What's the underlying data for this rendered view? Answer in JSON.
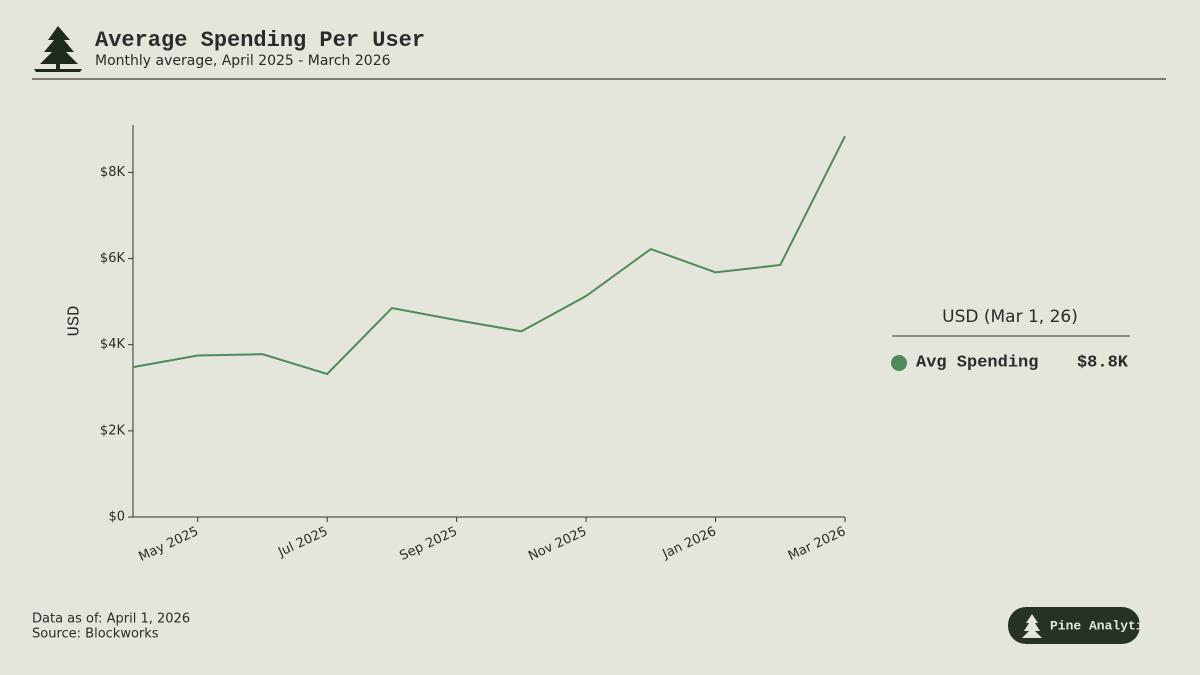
{
  "chart_data": {
    "type": "line",
    "title": "Average Spending Per User",
    "subtitle": "Monthly average, April 2025 - March 2026",
    "y_label": "USD",
    "x": [
      "2025-04",
      "2025-05",
      "2025-06",
      "2025-07",
      "2025-08",
      "2025-09",
      "2025-10",
      "2025-11",
      "2025-12",
      "2026-01",
      "2026-02",
      "2026-03"
    ],
    "series": [
      {
        "name": "Avg Spending",
        "color": "#4f8a5b",
        "values": [
          3480,
          3750,
          3780,
          3320,
          4850,
          4570,
          4310,
          5130,
          6220,
          5680,
          5850,
          8840
        ],
        "value_labels": [
          null,
          null,
          null,
          null,
          null,
          null,
          null,
          null,
          null,
          null,
          null,
          "$8.8K"
        ]
      }
    ],
    "xlim": [
      "2025-04",
      "2026-03"
    ],
    "xticks": [
      {
        "value": "2025-05",
        "label": "May 2025"
      },
      {
        "value": "2025-07",
        "label": "Jul 2025"
      },
      {
        "value": "2025-09",
        "label": "Sep 2025"
      },
      {
        "value": "2025-11",
        "label": "Nov 2025"
      },
      {
        "value": "2026-01",
        "label": "Jan 2026"
      },
      {
        "value": "2026-03",
        "label": "Mar 2026"
      }
    ],
    "ylim": [
      0,
      9100
    ],
    "yticks": [
      {
        "value": 0,
        "label": "$0"
      },
      {
        "value": 2000,
        "label": "$2K"
      },
      {
        "value": 4000,
        "label": "$4K"
      },
      {
        "value": 6000,
        "label": "$6K"
      },
      {
        "value": 8000,
        "label": "$8K"
      }
    ],
    "legend_title": "USD (Mar 1, 26)"
  },
  "footer": {
    "date": "Data as of: April 1, 2026",
    "source": "Source: Blockworks"
  },
  "brand": "Pine Analytics"
}
